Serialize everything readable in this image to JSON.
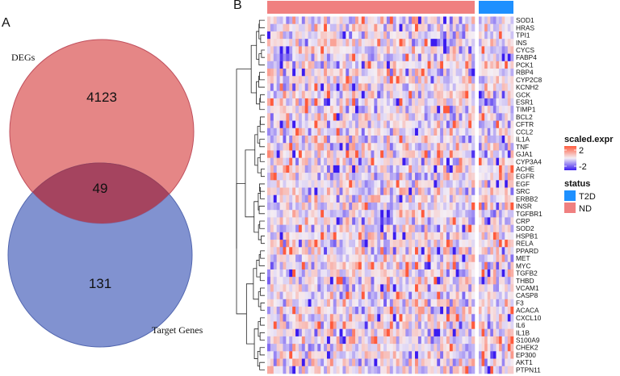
{
  "panels": {
    "a": "A",
    "b": "B"
  },
  "venn": {
    "sets": [
      {
        "name": "DEGs",
        "color": "#e27979"
      },
      {
        "name": "Target Genes",
        "color": "#6b7fc8"
      }
    ],
    "counts": {
      "degs_only": "4123",
      "overlap": "49",
      "targets_only": "131"
    },
    "overlap_color": "#a5445f"
  },
  "chart_data": {
    "type": "heatmap",
    "column_annotation": {
      "title": "status",
      "groups": [
        {
          "name": "ND",
          "color": "#f08080",
          "columns": 66
        },
        {
          "name": "T2D",
          "color": "#1e90ff",
          "columns": 12
        }
      ]
    },
    "rows": [
      "SOD1",
      "HRAS",
      "TPI1",
      "INS",
      "CYCS",
      "FABP4",
      "PCK1",
      "RBP4",
      "CYP2C8",
      "KCNH2",
      "GCK",
      "ESR1",
      "TIMP1",
      "BCL2",
      "CFTR",
      "CCL2",
      "IL1A",
      "TNF",
      "GJA1",
      "CYP3A4",
      "ACHE",
      "EGFR",
      "EGF",
      "SRC",
      "ERBB2",
      "INSR",
      "TGFBR1",
      "CRP",
      "SOD2",
      "HSPB1",
      "RELA",
      "PPARD",
      "MET",
      "MYC",
      "TGFB2",
      "THBD",
      "VCAM1",
      "CASP8",
      "F3",
      "ACACA",
      "CXCL10",
      "IL6",
      "IL1B",
      "S100A9",
      "CHEK2",
      "EP300",
      "AKT1",
      "PTPN11"
    ],
    "color_scale": {
      "title": "scaled.expr",
      "min": -2,
      "max": 2,
      "low": "#3b1cf0",
      "mid": "#f4eef5",
      "high": "#ff5a3c",
      "ticks": [
        "2",
        "-2"
      ]
    },
    "legend": [
      {
        "label": "T2D",
        "color": "#1e90ff"
      },
      {
        "label": "ND",
        "color": "#f08080"
      }
    ],
    "row_dendrogram": true
  }
}
